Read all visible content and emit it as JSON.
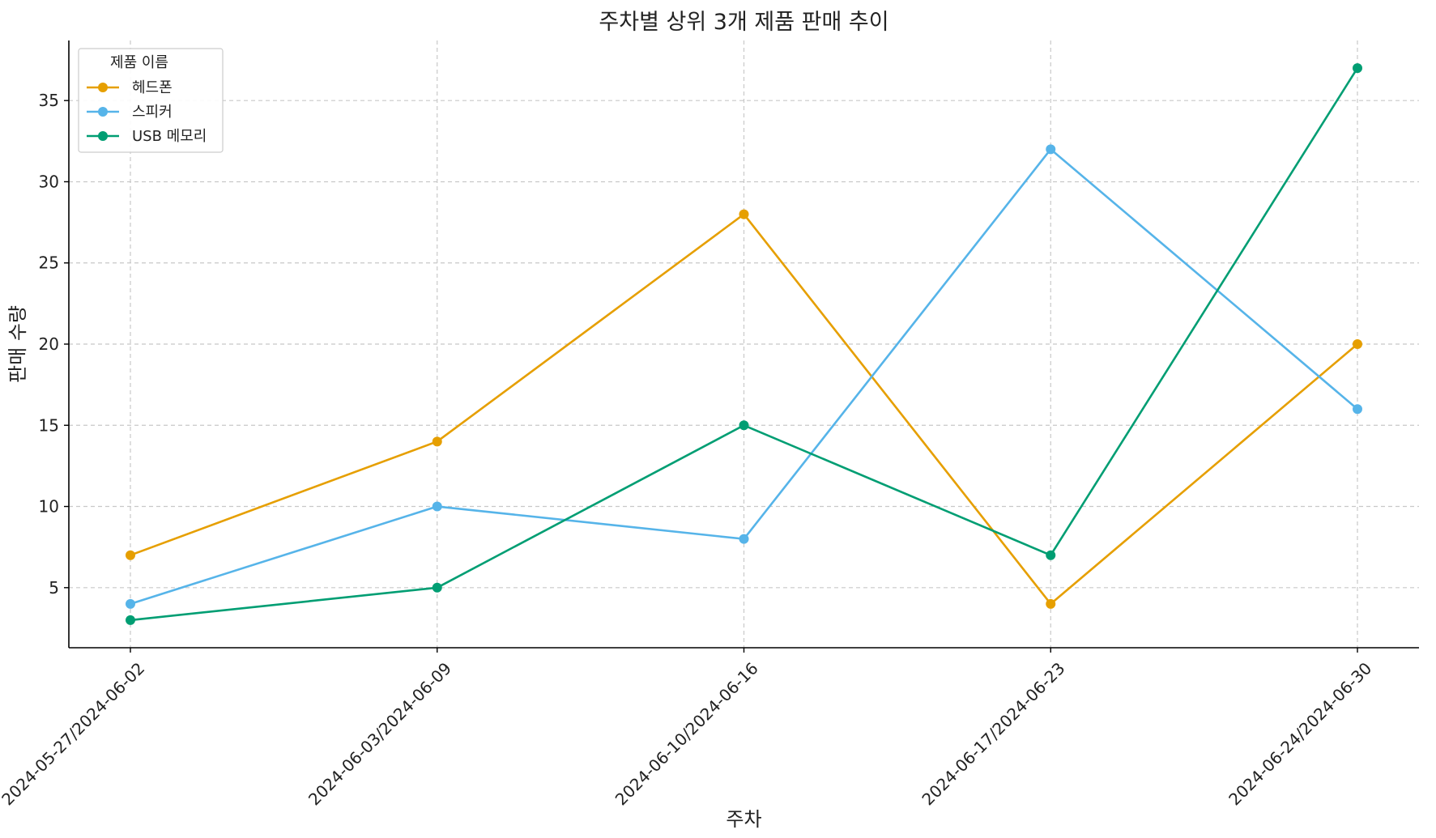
{
  "chart_data": {
    "type": "line",
    "title": "주차별 상위 3개 제품 판매 추이",
    "xlabel": "주차",
    "ylabel": "판매 수량",
    "categories": [
      "2024-05-27/2024-06-02",
      "2024-06-03/2024-06-09",
      "2024-06-10/2024-06-16",
      "2024-06-17/2024-06-23",
      "2024-06-24/2024-06-30"
    ],
    "series": [
      {
        "name": "헤드폰",
        "values": [
          7,
          14,
          28,
          4,
          20
        ],
        "color": "#E69F00"
      },
      {
        "name": "스피커",
        "values": [
          4,
          10,
          8,
          32,
          16
        ],
        "color": "#56B4E9"
      },
      {
        "name": "USB 메모리",
        "values": [
          3,
          5,
          15,
          7,
          37
        ],
        "color": "#009E73"
      }
    ],
    "ylim": [
      1.3,
      38.7
    ],
    "yticks": [
      5,
      10,
      15,
      20,
      25,
      30,
      35
    ],
    "grid": true,
    "legend": {
      "title": "제품 이름",
      "placement": "top-left"
    },
    "marker": "circle"
  }
}
